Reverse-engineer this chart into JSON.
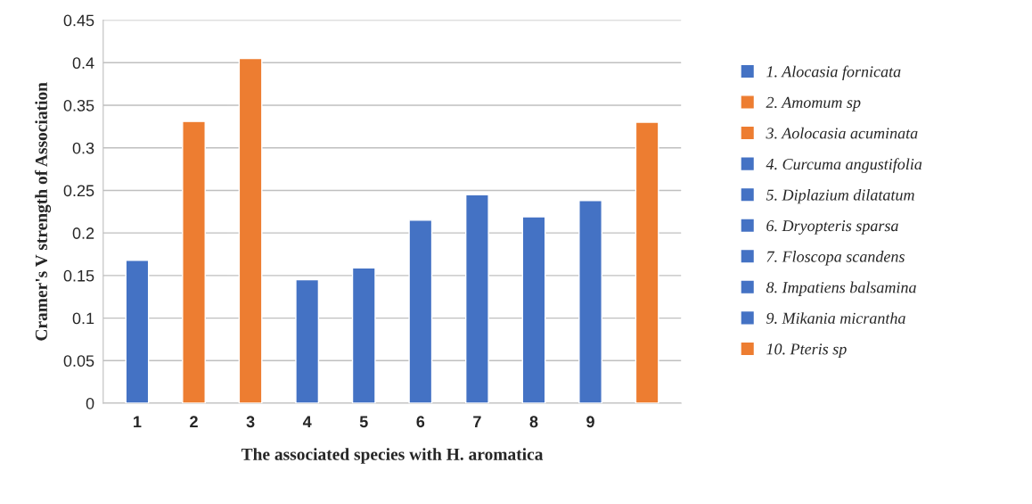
{
  "chart_data": {
    "type": "bar",
    "xlabel": "The associated species with H. aromatica",
    "ylabel": "Cramer's V strength of Association",
    "categories": [
      "1",
      "2",
      "3",
      "4",
      "5",
      "6",
      "7",
      "8",
      "9",
      null
    ],
    "series": [
      {
        "name": "1. Alocasia fornicata",
        "color": "#4472c4",
        "values": [
          0.168,
          null,
          null,
          null,
          null,
          null,
          null,
          null,
          null,
          null
        ]
      },
      {
        "name": "2. Amomum sp",
        "color": "#ed7d31",
        "values": [
          null,
          0.331,
          null,
          null,
          null,
          null,
          null,
          null,
          null,
          null
        ]
      },
      {
        "name": "3. Aolocasia acuminata",
        "color": "#ed7d31",
        "values": [
          null,
          null,
          0.405,
          null,
          null,
          null,
          null,
          null,
          null,
          null
        ]
      },
      {
        "name": "4. Curcuma angustifolia",
        "color": "#4472c4",
        "values": [
          null,
          null,
          null,
          0.145,
          null,
          null,
          null,
          null,
          null,
          null
        ]
      },
      {
        "name": "5. Diplazium dilatatum",
        "color": "#4472c4",
        "values": [
          null,
          null,
          null,
          null,
          0.159,
          null,
          null,
          null,
          null,
          null
        ]
      },
      {
        "name": "6. Dryopteris sparsa",
        "color": "#4472c4",
        "values": [
          null,
          null,
          null,
          null,
          null,
          0.215,
          null,
          null,
          null,
          null
        ]
      },
      {
        "name": "7. Floscopa scandens",
        "color": "#4472c4",
        "values": [
          null,
          null,
          null,
          null,
          null,
          null,
          0.245,
          null,
          null,
          null
        ]
      },
      {
        "name": "8. Impatiens balsamina",
        "color": "#4472c4",
        "values": [
          null,
          null,
          null,
          null,
          null,
          null,
          null,
          0.219,
          null,
          null
        ]
      },
      {
        "name": "9. Mikania micrantha",
        "color": "#4472c4",
        "values": [
          null,
          null,
          null,
          null,
          null,
          null,
          null,
          null,
          0.238,
          null
        ]
      },
      {
        "name": "10. Pteris sp",
        "color": "#ed7d31",
        "values": [
          null,
          null,
          null,
          null,
          null,
          null,
          null,
          null,
          null,
          0.33
        ]
      }
    ],
    "ylim": [
      0,
      0.45
    ],
    "yticks": [
      0,
      0.05,
      0.1,
      0.15,
      0.2,
      0.25,
      0.3,
      0.35,
      0.4,
      0.45
    ],
    "grid": "y",
    "legend": "right"
  }
}
